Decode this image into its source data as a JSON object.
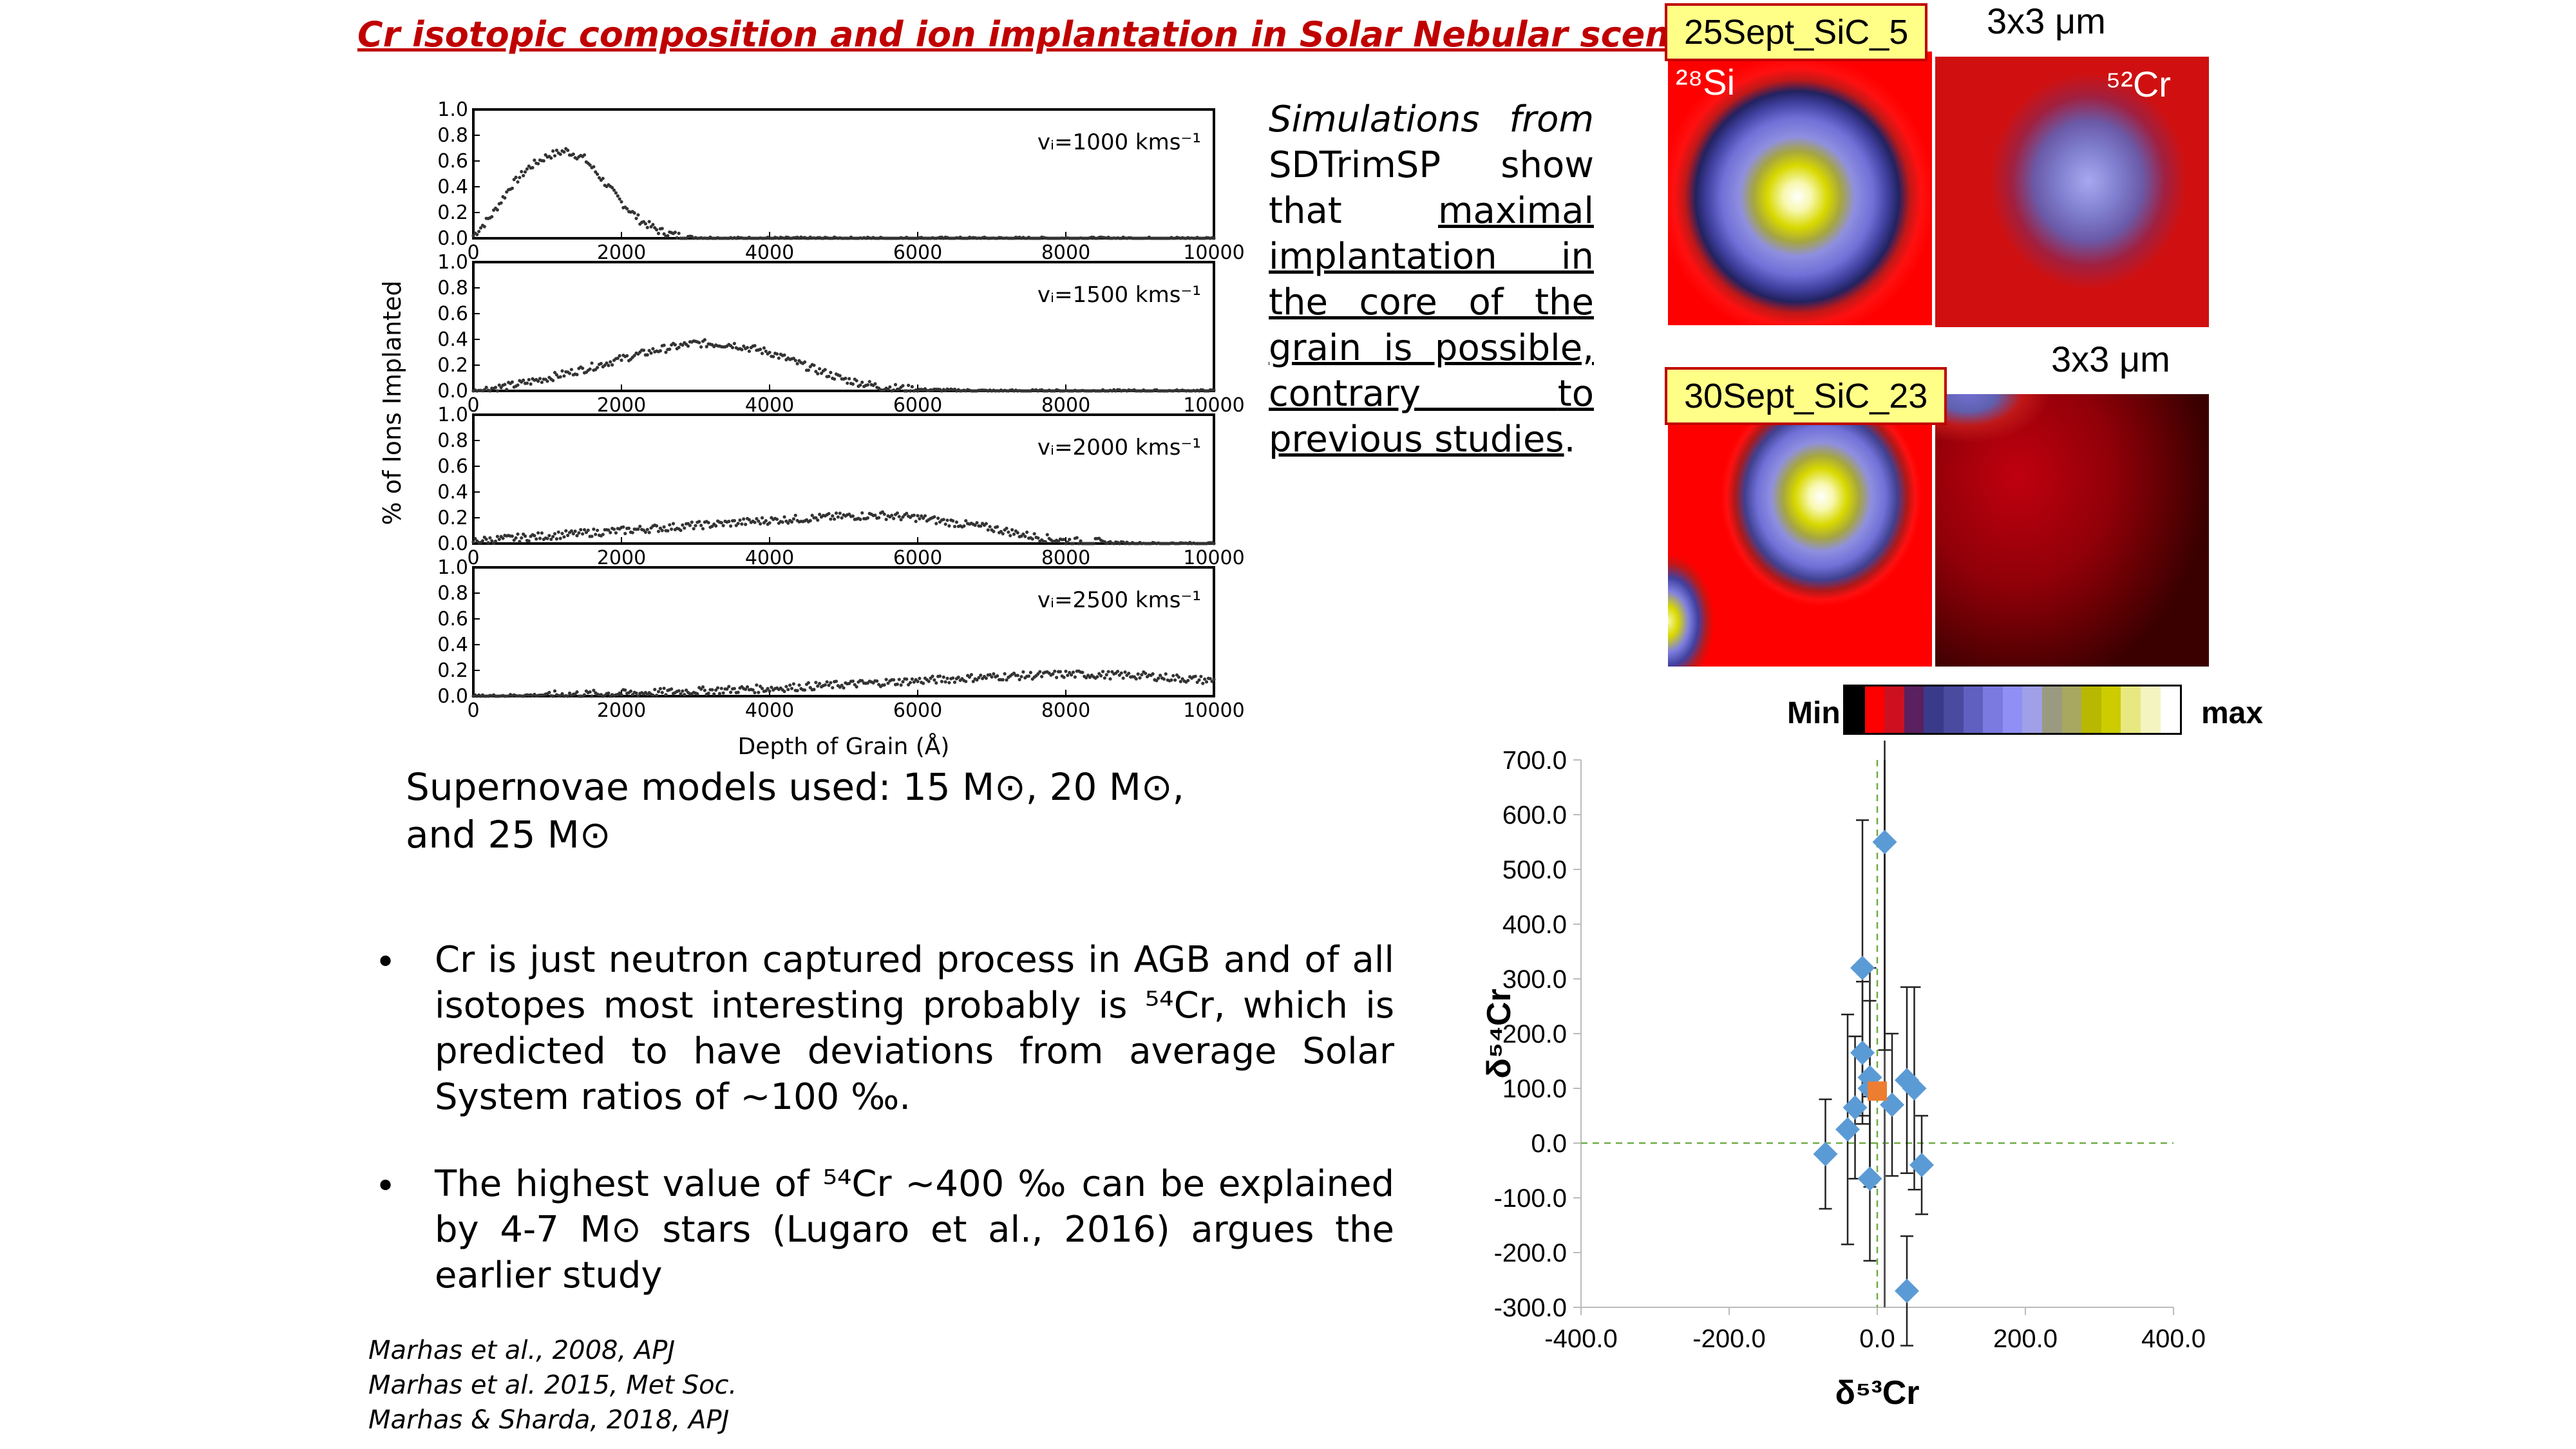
{
  "slide": {
    "title": "Cr isotopic composition and ion implantation in Solar Nebular scenario",
    "simulations_text": {
      "line1": "Simulations from",
      "line2": "SDTrimSP show",
      "line3a": "that",
      "line3b": "maximal",
      "line4a": "implantation",
      "line4b": "in",
      "line5": "the core of the",
      "line6": "grain is possible,",
      "line7a": "contrary",
      "line7b": "to",
      "line8a": "previous studies",
      "line8b": "."
    },
    "supernova_text": "Supernovae models used: 15 M⊙, 20 M⊙, and 25 M⊙",
    "bullets": [
      "Cr is just neutron captured process in AGB and of all isotopes most interesting probably is ⁵⁴Cr, which is predicted to have deviations from average Solar System ratios of ~100 ‰.",
      "The highest value of ⁵⁴Cr  ~400 ‰ can be explained by 4-7 M⊙ stars (Lugaro et al., 2016) argues the earlier study"
    ],
    "bullet_symbol": "•",
    "references": [
      "Marhas et al., 2008, APJ",
      "Marhas et al. 2015, Met Soc.",
      "Marhas & Sharda, 2018, APJ"
    ]
  },
  "maps": {
    "label1": "25Sept_SiC_5",
    "label2": "30Sept_SiC_23",
    "scale1": "3x3 μm",
    "scale2": "3x3 μm",
    "si_label": "²⁸Si",
    "cr_label": "⁵²Cr",
    "colorbar_min": "Min",
    "colorbar_max": "max",
    "colorbar_colors": [
      "#000000",
      "#ff0000",
      "#cc1020",
      "#5a2060",
      "#3a3a8a",
      "#4a4aa0",
      "#6060c0",
      "#7a7ae0",
      "#8f8ff5",
      "#a0a0e8",
      "#9a9a80",
      "#a8a860",
      "#b8b800",
      "#cccc00",
      "#e8e880",
      "#f4f4c0",
      "#ffffff"
    ]
  },
  "chart_data": [
    {
      "type": "scatter",
      "title": "",
      "xlabel": "Depth of Grain (Å)",
      "ylabel": "% of Ions Implanted",
      "xlim": [
        0,
        10000
      ],
      "ylim": [
        0,
        1.0
      ],
      "x_ticks": [
        "0",
        "2000",
        "4000",
        "6000",
        "8000",
        "10000"
      ],
      "y_ticks": [
        "0.0",
        "0.2",
        "0.4",
        "0.6",
        "0.8",
        "1.0"
      ],
      "panels": [
        {
          "label": "vᵢ=1000 kms⁻¹",
          "x": [
            0,
            250,
            500,
            750,
            1000,
            1250,
            1500,
            1750,
            2000,
            2250,
            2500,
            2750,
            3000,
            3500,
            4000,
            6000,
            8000,
            10000
          ],
          "y": [
            0.02,
            0.18,
            0.4,
            0.55,
            0.64,
            0.68,
            0.62,
            0.45,
            0.28,
            0.14,
            0.06,
            0.02,
            0.005,
            0,
            0,
            0,
            0,
            0
          ]
        },
        {
          "label": "vᵢ=1500 kms⁻¹",
          "x": [
            0,
            500,
            1000,
            1500,
            2000,
            2500,
            3000,
            3500,
            4000,
            4500,
            5000,
            5500,
            6000,
            7000,
            8000,
            10000
          ],
          "y": [
            0.0,
            0.04,
            0.1,
            0.17,
            0.25,
            0.32,
            0.37,
            0.36,
            0.3,
            0.19,
            0.09,
            0.03,
            0.01,
            0,
            0,
            0
          ]
        },
        {
          "label": "vᵢ=2000 kms⁻¹",
          "x": [
            0,
            1000,
            2000,
            3000,
            4000,
            5000,
            5500,
            6000,
            7000,
            7500,
            8000,
            9000,
            10000
          ],
          "y": [
            0.02,
            0.06,
            0.1,
            0.14,
            0.18,
            0.21,
            0.22,
            0.2,
            0.12,
            0.06,
            0.02,
            0.0,
            0.0
          ]
        },
        {
          "label": "vᵢ=2500 kms⁻¹",
          "x": [
            0,
            1000,
            2000,
            3000,
            4000,
            5000,
            6000,
            7000,
            8000,
            9000,
            10000
          ],
          "y": [
            0.0,
            0.01,
            0.02,
            0.04,
            0.06,
            0.09,
            0.12,
            0.15,
            0.17,
            0.16,
            0.12
          ]
        }
      ]
    },
    {
      "type": "scatter",
      "title": "",
      "xlabel": "δ⁵³Cr",
      "ylabel": "δ⁵⁴Cr",
      "xlim": [
        -400,
        400
      ],
      "ylim": [
        -300,
        700
      ],
      "x_ticks": [
        "-400.0",
        "-200.0",
        "0.0",
        "200.0",
        "400.0"
      ],
      "y_ticks": [
        "-300.0",
        "-200.0",
        "-100.0",
        "0.0",
        "100.0",
        "200.0",
        "300.0",
        "400.0",
        "500.0",
        "600.0",
        "700.0"
      ],
      "grid": false,
      "series": [
        {
          "x": [
            10,
            -20,
            -20,
            -10,
            -10,
            40,
            50,
            -30,
            -40,
            -70,
            -10,
            20,
            60,
            40
          ],
          "y": [
            550,
            320,
            165,
            120,
            100,
            115,
            100,
            65,
            25,
            -20,
            -65,
            70,
            -40,
            -270
          ],
          "y_err": [
            380,
            270,
            130,
            200,
            160,
            170,
            185,
            130,
            210,
            100,
            150,
            130,
            90,
            100
          ],
          "color": "#5b9bd5"
        },
        {
          "x": [
            0
          ],
          "y": [
            95
          ],
          "color": "#ed7d31"
        }
      ]
    }
  ]
}
